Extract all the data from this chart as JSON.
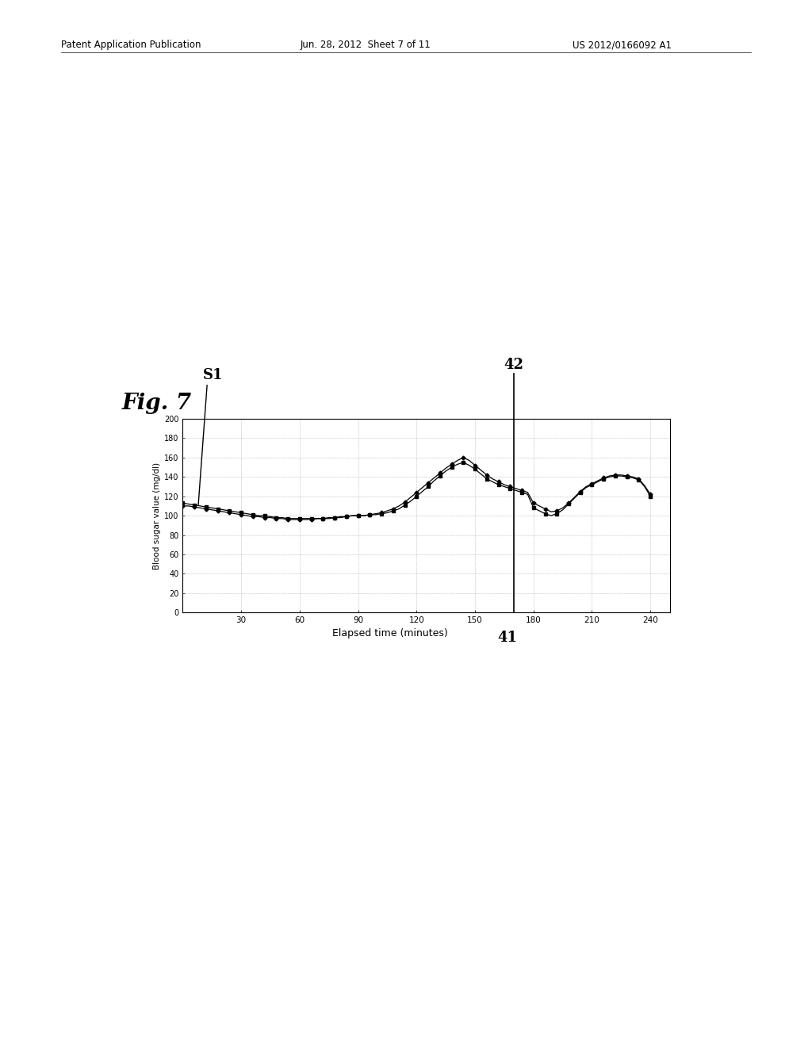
{
  "header_left": "Patent Application Publication",
  "header_center": "Jun. 28, 2012  Sheet 7 of 11",
  "header_right": "US 2012/0166092 A1",
  "fig_label": "Fig. 7",
  "xlabel": "Elapsed time (minutes)",
  "ylabel": "Blood sugar value (mg/dl)",
  "label_41": "41",
  "label_42": "42",
  "label_S1": "S1",
  "x_ticks": [
    30,
    60,
    90,
    120,
    150,
    180,
    210,
    240
  ],
  "y_ticks": [
    0,
    20,
    40,
    60,
    80,
    100,
    120,
    140,
    160,
    180,
    200
  ],
  "ylim": [
    0,
    200
  ],
  "xlim": [
    0,
    250
  ],
  "bg_color": "#ffffff",
  "series1_x": [
    0,
    3,
    6,
    9,
    12,
    15,
    18,
    21,
    24,
    27,
    30,
    33,
    36,
    39,
    42,
    45,
    48,
    51,
    54,
    57,
    60,
    63,
    66,
    69,
    72,
    75,
    78,
    81,
    84,
    87,
    90,
    93,
    96,
    99,
    102,
    105,
    108,
    111,
    114,
    117,
    120,
    123,
    126,
    129,
    132,
    135,
    138,
    141,
    144,
    147,
    150,
    153,
    156,
    159,
    162,
    165,
    168,
    171,
    174,
    177,
    180,
    183,
    186,
    189,
    192,
    195,
    198,
    201,
    204,
    207,
    210,
    213,
    216,
    219,
    222,
    225,
    228,
    231,
    234,
    237,
    240
  ],
  "series1_y": [
    113,
    112,
    111,
    110,
    109,
    108,
    107,
    106,
    105,
    104,
    103,
    102,
    101,
    100,
    100,
    99,
    98,
    98,
    97,
    97,
    97,
    97,
    97,
    97,
    97,
    98,
    98,
    99,
    99,
    100,
    100,
    100,
    101,
    101,
    102,
    103,
    105,
    107,
    111,
    115,
    120,
    125,
    130,
    136,
    141,
    146,
    150,
    153,
    155,
    152,
    148,
    143,
    138,
    135,
    132,
    130,
    128,
    126,
    124,
    122,
    108,
    105,
    102,
    100,
    102,
    106,
    112,
    118,
    124,
    129,
    132,
    135,
    138,
    140,
    141,
    141,
    140,
    139,
    137,
    130,
    120
  ],
  "series2_x": [
    0,
    3,
    6,
    9,
    12,
    15,
    18,
    21,
    24,
    27,
    30,
    33,
    36,
    39,
    42,
    45,
    48,
    51,
    54,
    57,
    60,
    63,
    66,
    69,
    72,
    75,
    78,
    81,
    84,
    87,
    90,
    93,
    96,
    99,
    102,
    105,
    108,
    111,
    114,
    117,
    120,
    123,
    126,
    129,
    132,
    135,
    138,
    141,
    144,
    147,
    150,
    153,
    156,
    159,
    162,
    165,
    168,
    171,
    174,
    177,
    180,
    183,
    186,
    189,
    192,
    195,
    198,
    201,
    204,
    207,
    210,
    213,
    216,
    219,
    222,
    225,
    228,
    231,
    234,
    237,
    240
  ],
  "series2_y": [
    110,
    110,
    109,
    108,
    107,
    106,
    105,
    104,
    103,
    102,
    101,
    100,
    99,
    99,
    98,
    98,
    97,
    97,
    96,
    96,
    96,
    96,
    96,
    97,
    97,
    97,
    98,
    98,
    99,
    100,
    100,
    100,
    101,
    102,
    103,
    105,
    107,
    110,
    114,
    119,
    124,
    129,
    134,
    139,
    144,
    149,
    153,
    157,
    160,
    157,
    152,
    147,
    142,
    138,
    135,
    132,
    130,
    128,
    126,
    124,
    113,
    110,
    107,
    104,
    105,
    108,
    113,
    119,
    125,
    130,
    133,
    136,
    139,
    141,
    142,
    142,
    141,
    140,
    138,
    131,
    122
  ]
}
